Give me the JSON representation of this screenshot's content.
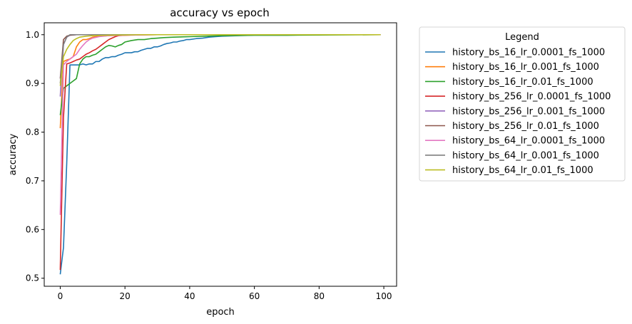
{
  "chart_data": {
    "type": "line",
    "title": "accuracy vs epoch",
    "xlabel": "epoch",
    "ylabel": "accuracy",
    "xlim": [
      -4.95,
      103.95
    ],
    "ylim": [
      0.4835,
      1.0245
    ],
    "xticks": [
      0,
      20,
      40,
      60,
      80,
      100
    ],
    "yticks": [
      0.5,
      0.6,
      0.7,
      0.8,
      0.9,
      1.0
    ],
    "xtick_labels": [
      "0",
      "20",
      "40",
      "60",
      "80",
      "100"
    ],
    "ytick_labels": [
      "0.5",
      "0.6",
      "0.7",
      "0.8",
      "0.9",
      "1.0"
    ],
    "grid": false,
    "legend_title": "Legend",
    "legend_position": "outside-right",
    "series": [
      {
        "name": "history_bs_16_lr_0.0001_fs_1000",
        "color": "#1f77b4",
        "points": [
          [
            0,
            0.508
          ],
          [
            1,
            0.563
          ],
          [
            2,
            0.735
          ],
          [
            3,
            0.938
          ],
          [
            4,
            0.938
          ],
          [
            5,
            0.938
          ],
          [
            6,
            0.938
          ],
          [
            7,
            0.94
          ],
          [
            8,
            0.938
          ],
          [
            9,
            0.94
          ],
          [
            10,
            0.94
          ],
          [
            11,
            0.945
          ],
          [
            12,
            0.945
          ],
          [
            13,
            0.95
          ],
          [
            14,
            0.953
          ],
          [
            15,
            0.953
          ],
          [
            16,
            0.955
          ],
          [
            17,
            0.955
          ],
          [
            18,
            0.958
          ],
          [
            19,
            0.96
          ],
          [
            20,
            0.963
          ],
          [
            21,
            0.963
          ],
          [
            22,
            0.963
          ],
          [
            23,
            0.965
          ],
          [
            24,
            0.965
          ],
          [
            25,
            0.968
          ],
          [
            26,
            0.97
          ],
          [
            27,
            0.972
          ],
          [
            28,
            0.972
          ],
          [
            29,
            0.975
          ],
          [
            30,
            0.975
          ],
          [
            31,
            0.977
          ],
          [
            32,
            0.98
          ],
          [
            33,
            0.982
          ],
          [
            34,
            0.983
          ],
          [
            35,
            0.985
          ],
          [
            36,
            0.985
          ],
          [
            37,
            0.987
          ],
          [
            38,
            0.988
          ],
          [
            39,
            0.99
          ],
          [
            40,
            0.99
          ],
          [
            42,
            0.992
          ],
          [
            44,
            0.993
          ],
          [
            46,
            0.995
          ],
          [
            48,
            0.996
          ],
          [
            50,
            0.997
          ],
          [
            55,
            0.998
          ],
          [
            60,
            0.999
          ],
          [
            70,
            0.999
          ],
          [
            80,
            1.0
          ],
          [
            90,
            1.0
          ],
          [
            99,
            1.0
          ]
        ]
      },
      {
        "name": "history_bs_16_lr_0.001_fs_1000",
        "color": "#ff7f0e",
        "points": [
          [
            0,
            0.808
          ],
          [
            1,
            0.945
          ],
          [
            2,
            0.948
          ],
          [
            3,
            0.95
          ],
          [
            4,
            0.955
          ],
          [
            5,
            0.975
          ],
          [
            6,
            0.985
          ],
          [
            7,
            0.99
          ],
          [
            8,
            0.99
          ],
          [
            9,
            0.992
          ],
          [
            10,
            0.995
          ],
          [
            12,
            0.997
          ],
          [
            15,
            0.998
          ],
          [
            20,
            0.999
          ],
          [
            30,
            1.0
          ],
          [
            99,
            1.0
          ]
        ]
      },
      {
        "name": "history_bs_16_lr_0.01_fs_1000",
        "color": "#2ca02c",
        "points": [
          [
            0,
            0.835
          ],
          [
            1,
            0.89
          ],
          [
            2,
            0.895
          ],
          [
            3,
            0.9
          ],
          [
            4,
            0.905
          ],
          [
            5,
            0.91
          ],
          [
            6,
            0.94
          ],
          [
            7,
            0.95
          ],
          [
            8,
            0.955
          ],
          [
            9,
            0.955
          ],
          [
            10,
            0.958
          ],
          [
            11,
            0.96
          ],
          [
            12,
            0.965
          ],
          [
            13,
            0.97
          ],
          [
            14,
            0.975
          ],
          [
            15,
            0.978
          ],
          [
            16,
            0.977
          ],
          [
            17,
            0.975
          ],
          [
            18,
            0.978
          ],
          [
            19,
            0.98
          ],
          [
            20,
            0.985
          ],
          [
            22,
            0.988
          ],
          [
            24,
            0.99
          ],
          [
            26,
            0.99
          ],
          [
            28,
            0.992
          ],
          [
            30,
            0.993
          ],
          [
            32,
            0.994
          ],
          [
            35,
            0.995
          ],
          [
            40,
            0.996
          ],
          [
            45,
            0.997
          ],
          [
            50,
            0.998
          ],
          [
            60,
            0.999
          ],
          [
            70,
            0.999
          ],
          [
            99,
            1.0
          ]
        ]
      },
      {
        "name": "history_bs_256_lr_0.0001_fs_1000",
        "color": "#d62728",
        "points": [
          [
            0,
            0.517
          ],
          [
            1,
            0.83
          ],
          [
            2,
            0.94
          ],
          [
            3,
            0.942
          ],
          [
            4,
            0.945
          ],
          [
            5,
            0.948
          ],
          [
            6,
            0.95
          ],
          [
            7,
            0.955
          ],
          [
            8,
            0.96
          ],
          [
            9,
            0.963
          ],
          [
            10,
            0.967
          ],
          [
            11,
            0.97
          ],
          [
            12,
            0.975
          ],
          [
            13,
            0.98
          ],
          [
            14,
            0.985
          ],
          [
            15,
            0.99
          ],
          [
            16,
            0.993
          ],
          [
            17,
            0.996
          ],
          [
            18,
            0.998
          ],
          [
            20,
            0.999
          ],
          [
            25,
            1.0
          ],
          [
            99,
            1.0
          ]
        ]
      },
      {
        "name": "history_bs_256_lr_0.001_fs_1000",
        "color": "#9467bd",
        "points": [
          [
            0,
            0.873
          ],
          [
            1,
            0.98
          ],
          [
            2,
            0.995
          ],
          [
            3,
            0.999
          ],
          [
            5,
            1.0
          ],
          [
            99,
            1.0
          ]
        ]
      },
      {
        "name": "history_bs_256_lr_0.01_fs_1000",
        "color": "#8c564b",
        "points": [
          [
            0,
            0.91
          ],
          [
            1,
            0.99
          ],
          [
            2,
            0.997
          ],
          [
            3,
            0.999
          ],
          [
            5,
            1.0
          ],
          [
            99,
            1.0
          ]
        ]
      },
      {
        "name": "history_bs_64_lr_0.0001_fs_1000",
        "color": "#e377c2",
        "points": [
          [
            0,
            0.63
          ],
          [
            1,
            0.938
          ],
          [
            2,
            0.945
          ],
          [
            3,
            0.95
          ],
          [
            4,
            0.955
          ],
          [
            5,
            0.96
          ],
          [
            6,
            0.97
          ],
          [
            7,
            0.978
          ],
          [
            8,
            0.985
          ],
          [
            9,
            0.99
          ],
          [
            10,
            0.993
          ],
          [
            12,
            0.996
          ],
          [
            15,
            0.998
          ],
          [
            20,
            0.999
          ],
          [
            30,
            1.0
          ],
          [
            99,
            1.0
          ]
        ]
      },
      {
        "name": "history_bs_64_lr_0.001_fs_1000",
        "color": "#7f7f7f",
        "points": [
          [
            0,
            0.9
          ],
          [
            1,
            0.98
          ],
          [
            2,
            0.995
          ],
          [
            3,
            1.0
          ],
          [
            99,
            1.0
          ]
        ]
      },
      {
        "name": "history_bs_64_lr_0.01_fs_1000",
        "color": "#bcbd22",
        "points": [
          [
            0,
            0.895
          ],
          [
            1,
            0.955
          ],
          [
            2,
            0.97
          ],
          [
            3,
            0.98
          ],
          [
            4,
            0.988
          ],
          [
            5,
            0.992
          ],
          [
            6,
            0.995
          ],
          [
            8,
            0.997
          ],
          [
            10,
            0.998
          ],
          [
            15,
            0.999
          ],
          [
            25,
            1.0
          ],
          [
            99,
            1.0
          ]
        ]
      }
    ]
  }
}
